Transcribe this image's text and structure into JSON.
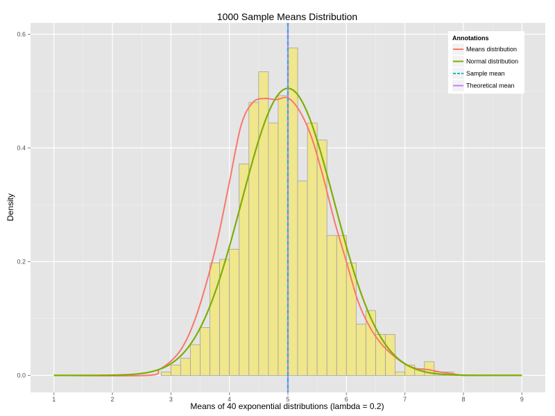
{
  "chart_data": {
    "type": "histogram",
    "title": "1000 Sample Means Distribution",
    "xlabel": "Means of 40 exponential distributions (lambda = 0.2)",
    "ylabel": "Density",
    "xlim": [
      0.6,
      9.4
    ],
    "ylim": [
      -0.03,
      0.62
    ],
    "x_ticks": [
      1,
      2,
      3,
      4,
      5,
      6,
      7,
      8,
      9
    ],
    "y_ticks": [
      0.0,
      0.2,
      0.4,
      0.6
    ],
    "x_tick_labels": [
      "1",
      "2",
      "3",
      "4",
      "5",
      "6",
      "7",
      "8",
      "9"
    ],
    "y_tick_labels": [
      "0.0",
      "0.2",
      "0.4",
      "0.6"
    ],
    "grid": true,
    "histogram": {
      "bin_width": 0.1667,
      "bin_start": 2.833,
      "densities": [
        0.006,
        0.018,
        0.03,
        0.054,
        0.084,
        0.198,
        0.204,
        0.222,
        0.372,
        0.48,
        0.534,
        0.444,
        0.492,
        0.576,
        0.342,
        0.444,
        0.414,
        0.246,
        0.246,
        0.198,
        0.09,
        0.114,
        0.072,
        0.072,
        0.006,
        0.018,
        0.012,
        0.024,
        0.006,
        0.006
      ],
      "fill": "#f0e68c",
      "edge": "#a0a0a0"
    },
    "series": [
      {
        "name": "Means distribution",
        "color": "#f8766d",
        "x": [
          1.0,
          2.6,
          2.8,
          3.0,
          3.2,
          3.4,
          3.6,
          3.8,
          4.0,
          4.2,
          4.4,
          4.6,
          4.8,
          5.0,
          5.2,
          5.4,
          5.6,
          5.8,
          6.0,
          6.2,
          6.4,
          6.6,
          6.8,
          7.0,
          7.2,
          7.4,
          7.6,
          7.8,
          8.0,
          8.2,
          9.0
        ],
        "y": [
          0.0,
          0.0,
          0.01,
          0.025,
          0.05,
          0.095,
          0.16,
          0.24,
          0.34,
          0.44,
          0.48,
          0.487,
          0.485,
          0.488,
          0.465,
          0.42,
          0.35,
          0.27,
          0.2,
          0.13,
          0.085,
          0.055,
          0.035,
          0.02,
          0.012,
          0.01,
          0.006,
          0.003,
          0.0,
          0.0,
          0.0
        ]
      },
      {
        "name": "Normal distribution",
        "color": "#7cae00",
        "mean": 5.0,
        "sd": 0.79,
        "x_range": [
          1.0,
          9.0
        ]
      },
      {
        "name": "Sample mean",
        "color": "#00bfc4",
        "vline": 5.0,
        "dashed": true
      },
      {
        "name": "Theoretical mean",
        "color": "#c77cff",
        "vline": 5.0
      }
    ],
    "legend": {
      "title": "Annotations",
      "placement": "top-right",
      "entries": [
        "Means distribution",
        "Normal distribution",
        "Sample mean",
        "Theoretical mean"
      ]
    },
    "colors": {
      "panel_background": "#e5e5e5",
      "grid_major": "#ffffff",
      "grid_minor": "#f2f2f2"
    }
  }
}
